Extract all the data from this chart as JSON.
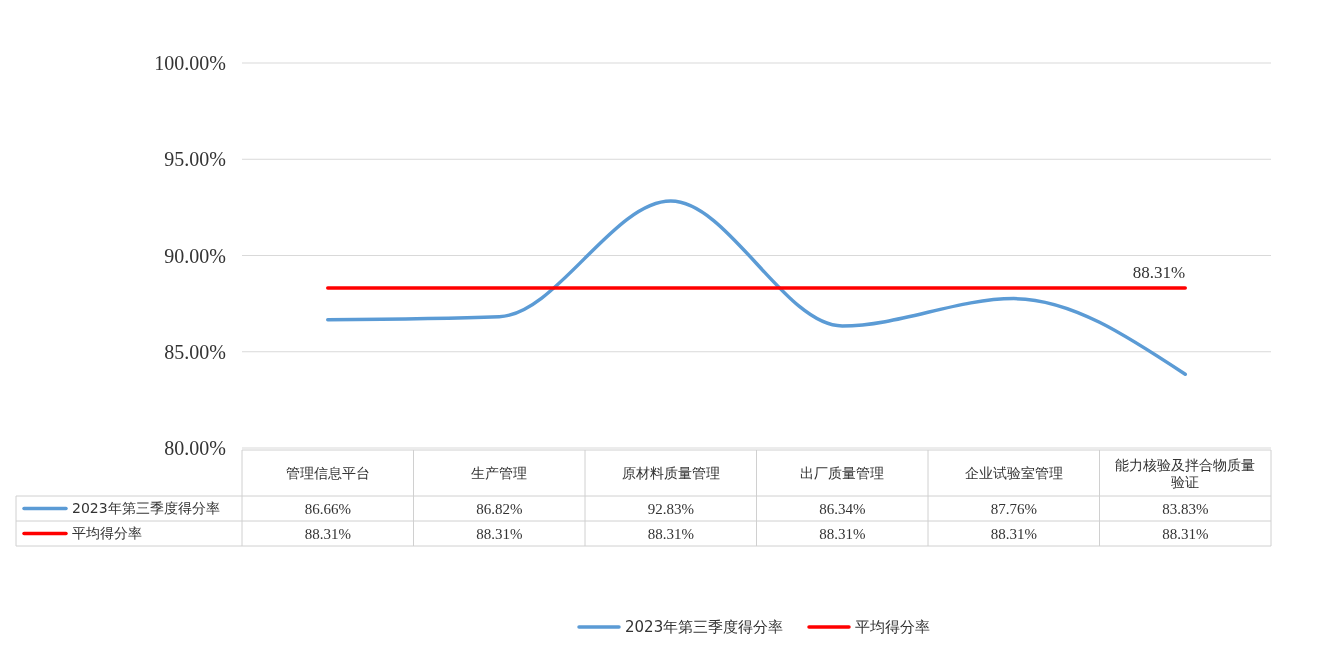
{
  "chart_data": {
    "type": "line",
    "categories": [
      "管理信息平台",
      "生产管理",
      "原材料质量管理",
      "出厂质量管理",
      "企业试验室管理",
      "能力核验及拌合物质量验证"
    ],
    "series": [
      {
        "name": "2023年第三季度得分率",
        "color": "#5b9bd5",
        "values": [
          86.66,
          86.82,
          92.83,
          86.34,
          87.76,
          83.83
        ],
        "value_labels": [
          "86.66%",
          "86.82%",
          "92.83%",
          "86.34%",
          "87.76%",
          "83.83%"
        ]
      },
      {
        "name": "平均得分率",
        "color": "#ff0000",
        "values": [
          88.31,
          88.31,
          88.31,
          88.31,
          88.31,
          88.31
        ],
        "value_labels": [
          "88.31%",
          "88.31%",
          "88.31%",
          "88.31%",
          "88.31%",
          "88.31%"
        ]
      }
    ],
    "ylim": [
      80,
      100
    ],
    "yticks": [
      {
        "value": 80,
        "label": "80.00%"
      },
      {
        "value": 85,
        "label": "85.00%"
      },
      {
        "value": 90,
        "label": "90.00%"
      },
      {
        "value": 95,
        "label": "95.00%"
      },
      {
        "value": 100,
        "label": "100.00%"
      }
    ],
    "grid": "y",
    "legend": "bottom",
    "marker": "none",
    "annotations": [
      "88.31%"
    ]
  }
}
